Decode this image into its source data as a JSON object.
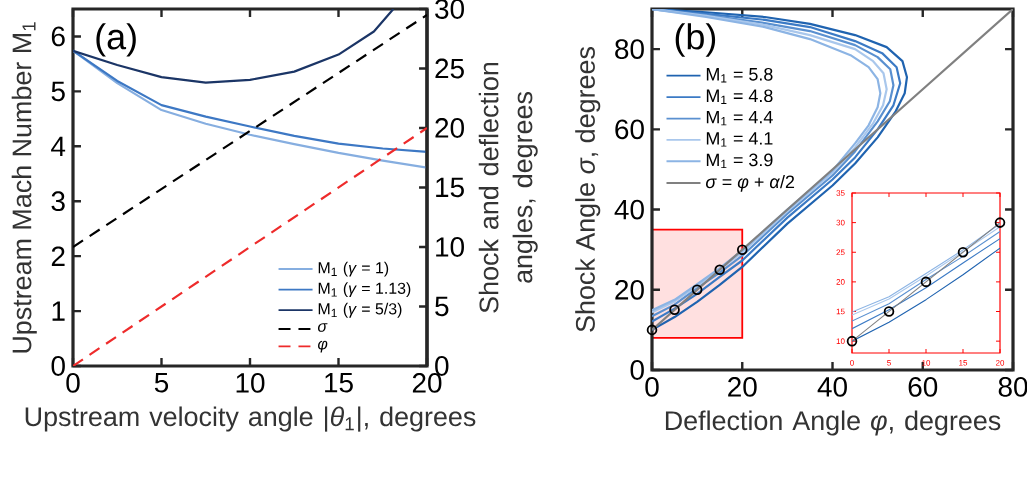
{
  "chart_data": [
    {
      "type": "line",
      "annotations": [
        "(a)"
      ],
      "xlabel": "Upstream velocity angle |*θ*$_{1}$|, degrees",
      "ylabel": "Upstream Mach Number M$_{1}$",
      "y2label": "Shock and deflection angles, degrees",
      "xlim": [
        0,
        20
      ],
      "ylim": [
        0,
        6.5
      ],
      "y2lim": [
        0,
        30
      ],
      "xticks": [
        0,
        5,
        10,
        15,
        20
      ],
      "yticks": [
        0,
        1,
        2,
        3,
        4,
        5,
        6
      ],
      "y2ticks": [
        0,
        5,
        10,
        15,
        20,
        25,
        30
      ],
      "legend": "bottom right",
      "series": [
        {
          "name": "M$_{1}$ (*γ* = 1)",
          "color": "#86aee0",
          "x": [
            0,
            2.5,
            5,
            7.5,
            10,
            12.5,
            15,
            17.5,
            20
          ],
          "values": [
            5.74,
            5.15,
            4.66,
            4.41,
            4.21,
            4.04,
            3.88,
            3.74,
            3.61
          ]
        },
        {
          "name": "M$_{1}$ (*γ* = 1.13)",
          "color": "#3d78c4",
          "x": [
            0,
            2.5,
            5,
            7.5,
            10,
            12.5,
            15,
            17.5,
            20
          ],
          "values": [
            5.74,
            5.19,
            4.75,
            4.54,
            4.36,
            4.19,
            4.05,
            3.96,
            3.9
          ]
        },
        {
          "name": "M$_{1}$ (*γ* = 5/3)",
          "color": "#1b3566",
          "x": [
            0,
            2.5,
            5,
            7.5,
            10,
            12.5,
            15,
            17,
            18.1
          ],
          "values": [
            5.74,
            5.48,
            5.26,
            5.16,
            5.21,
            5.36,
            5.67,
            6.09,
            6.5
          ]
        },
        {
          "name": "*σ*",
          "color": "#000000",
          "axis": "y2",
          "line_style": "dashed",
          "x": [
            0,
            20
          ],
          "values": [
            10,
            29.5
          ]
        },
        {
          "name": "*φ*",
          "color": "#ee2b2b",
          "axis": "y2",
          "line_style": "dashed",
          "x": [
            0,
            20
          ],
          "values": [
            0,
            20
          ]
        }
      ]
    },
    {
      "type": "line",
      "annotations": [
        "(b)"
      ],
      "xlabel": "Deflection Angle *φ*, degrees",
      "ylabel": "Shock Angle *σ*, degrees",
      "xlim": [
        0,
        80
      ],
      "ylim": [
        0,
        90
      ],
      "xticks": [
        0,
        20,
        40,
        60,
        80
      ],
      "yticks": [
        0,
        20,
        40,
        60,
        80
      ],
      "legend": "top left",
      "series": [
        {
          "name": "M$_{1}$ = 5.8",
          "color": "#1f63b0",
          "x": [
            0,
            5,
            10,
            15,
            20,
            30,
            40,
            45,
            50,
            54,
            56,
            56.5,
            55.5,
            52,
            45,
            35,
            25,
            12,
            0
          ],
          "values": [
            10,
            13.2,
            17.0,
            21.2,
            25.7,
            36.5,
            46,
            51.5,
            58,
            64.5,
            69,
            73,
            77,
            80.5,
            83.5,
            86.3,
            88,
            89.2,
            90
          ]
        },
        {
          "name": "M$_{1}$ = 4.8",
          "color": "#3b7ac5",
          "x": [
            0,
            5,
            10,
            15,
            20,
            30,
            40,
            45,
            50,
            53.5,
            55,
            54.2,
            51,
            45,
            35,
            25,
            12,
            0
          ],
          "values": [
            12.1,
            15.3,
            19.0,
            23.2,
            27.3,
            38,
            47.5,
            53,
            60,
            66,
            71.5,
            75.5,
            79,
            82,
            85.5,
            87.3,
            88.8,
            90
          ]
        },
        {
          "name": "M$_{1}$ = 4.4",
          "color": "#5a90d0",
          "x": [
            0,
            5,
            10,
            15,
            20,
            30,
            40,
            45,
            50,
            52.7,
            53.5,
            52.8,
            50,
            45,
            35,
            25,
            12,
            0
          ],
          "values": [
            13.4,
            16.3,
            20.4,
            24.3,
            28.5,
            39,
            48.5,
            54.5,
            62,
            67,
            71,
            75,
            78,
            81,
            84.5,
            86.5,
            88.5,
            90
          ]
        },
        {
          "name": "M$_{1}$ = 4.1",
          "color": "#a9c7ec",
          "x": [
            0,
            5,
            10,
            15,
            20,
            30,
            40,
            45,
            49,
            51.2,
            52,
            51.3,
            49,
            45,
            35,
            25,
            12,
            0
          ],
          "values": [
            14.4,
            17.1,
            21.0,
            25.1,
            29.3,
            39.6,
            49.2,
            55.5,
            61.5,
            66,
            70,
            74,
            77,
            80,
            83.5,
            86,
            88.3,
            90
          ]
        },
        {
          "name": "M$_{1}$ = 3.9",
          "color": "#8cb4e4",
          "x": [
            0,
            5,
            10,
            15,
            20,
            30,
            40,
            45,
            48,
            50,
            50.6,
            50,
            48,
            44,
            35,
            25,
            12,
            0
          ],
          "values": [
            14.9,
            17.5,
            21.4,
            25.4,
            29.8,
            40,
            49.7,
            56.5,
            61,
            65.5,
            69,
            72.5,
            75.5,
            78.5,
            82.5,
            85.5,
            88,
            90
          ]
        },
        {
          "name": "*σ* = *φ* + *α*/2",
          "color": "#808080",
          "x": [
            0,
            80
          ],
          "values": [
            10,
            90
          ]
        },
        {
          "type": "scatter",
          "marker": "circle",
          "color": "#000000",
          "x": [
            0,
            5,
            10,
            15,
            20
          ],
          "values": [
            10,
            15,
            20,
            25,
            30
          ]
        }
      ]
    },
    {
      "type": "line",
      "xlim": [
        0,
        20
      ],
      "ylim": [
        8,
        35
      ],
      "xticks": [
        0,
        5,
        10,
        15,
        20
      ],
      "yticks": [
        10,
        15,
        20,
        25,
        30,
        35
      ],
      "series": [
        {
          "color": "#1f63b0",
          "x": [
            0,
            5,
            10,
            15,
            20
          ],
          "values": [
            10,
            13.2,
            17.0,
            21.2,
            25.7
          ]
        },
        {
          "color": "#3b7ac5",
          "x": [
            0,
            5,
            10,
            15,
            20
          ],
          "values": [
            12.1,
            15.3,
            19.0,
            23.2,
            27.3
          ]
        },
        {
          "color": "#5a90d0",
          "x": [
            0,
            5,
            10,
            15,
            20
          ],
          "values": [
            13.4,
            16.3,
            20.4,
            24.3,
            28.5
          ]
        },
        {
          "color": "#a9c7ec",
          "x": [
            0,
            5,
            10,
            15,
            20
          ],
          "values": [
            14.4,
            17.1,
            21.0,
            25.1,
            29.3
          ]
        },
        {
          "color": "#8cb4e4",
          "x": [
            0,
            5,
            10,
            15,
            20
          ],
          "values": [
            14.9,
            17.5,
            21.4,
            25.4,
            29.8
          ]
        },
        {
          "color": "#808080",
          "x": [
            0,
            20
          ],
          "values": [
            10,
            30
          ]
        },
        {
          "type": "scatter",
          "marker": "circle",
          "color": "#000000",
          "x": [
            0,
            5,
            10,
            15,
            20
          ],
          "values": [
            10,
            15,
            20,
            25,
            30
          ]
        }
      ]
    }
  ]
}
